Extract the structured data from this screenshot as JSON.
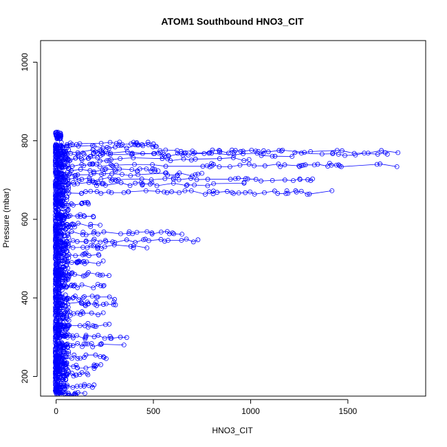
{
  "chart_data": {
    "type": "scatter",
    "title": "ATOM1 Southbound HNO3_CIT",
    "xlabel": "HNO3_CIT",
    "ylabel": "Pressure (mbar)",
    "xlim": [
      -80,
      1900
    ],
    "ylim": [
      1055,
      150
    ],
    "y_reversed": true,
    "x_ticks": [
      0,
      500,
      1000,
      1500
    ],
    "y_ticks": [
      200,
      400,
      600,
      800,
      1000
    ],
    "grid": false,
    "legend": "none",
    "marker": "open-circle",
    "connected": true,
    "color": "#0000ff",
    "series": [
      {
        "name": "",
        "bands": [
          {
            "y": 155,
            "x_min": 0,
            "x_max": 150
          },
          {
            "y": 175,
            "x_min": 0,
            "x_max": 200
          },
          {
            "y": 205,
            "x_min": 0,
            "x_max": 170
          },
          {
            "y": 225,
            "x_min": 0,
            "x_max": 260
          },
          {
            "y": 250,
            "x_min": 0,
            "x_max": 270
          },
          {
            "y": 280,
            "x_min": 0,
            "x_max": 350
          },
          {
            "y": 300,
            "x_min": 0,
            "x_max": 370
          },
          {
            "y": 330,
            "x_min": 0,
            "x_max": 290
          },
          {
            "y": 360,
            "x_min": 0,
            "x_max": 300
          },
          {
            "y": 385,
            "x_min": 0,
            "x_max": 320
          },
          {
            "y": 400,
            "x_min": 0,
            "x_max": 320
          },
          {
            "y": 430,
            "x_min": 0,
            "x_max": 260
          },
          {
            "y": 460,
            "x_min": 0,
            "x_max": 280
          },
          {
            "y": 490,
            "x_min": 0,
            "x_max": 260
          },
          {
            "y": 510,
            "x_min": 0,
            "x_max": 250
          },
          {
            "y": 530,
            "x_min": 0,
            "x_max": 500
          },
          {
            "y": 545,
            "x_min": 0,
            "x_max": 740
          },
          {
            "y": 565,
            "x_min": 0,
            "x_max": 700
          },
          {
            "y": 585,
            "x_min": 0,
            "x_max": 260
          },
          {
            "y": 610,
            "x_min": 0,
            "x_max": 200
          },
          {
            "y": 640,
            "x_min": 0,
            "x_max": 200
          },
          {
            "y": 668,
            "x_min": 0,
            "x_max": 1450
          },
          {
            "y": 690,
            "x_min": 0,
            "x_max": 1000
          },
          {
            "y": 702,
            "x_min": 0,
            "x_max": 1420
          },
          {
            "y": 715,
            "x_min": 0,
            "x_max": 750
          },
          {
            "y": 725,
            "x_min": 0,
            "x_max": 530
          },
          {
            "y": 738,
            "x_min": 0,
            "x_max": 1790
          },
          {
            "y": 752,
            "x_min": 0,
            "x_max": 1000
          },
          {
            "y": 765,
            "x_min": 0,
            "x_max": 1720
          },
          {
            "y": 772,
            "x_min": 0,
            "x_max": 1840
          },
          {
            "y": 785,
            "x_min": 0,
            "x_max": 520
          },
          {
            "y": 792,
            "x_min": 0,
            "x_max": 520
          }
        ],
        "surface_cluster": {
          "y_min": 805,
          "y_max": 822,
          "x_min": -5,
          "x_max": 25
        }
      }
    ]
  }
}
